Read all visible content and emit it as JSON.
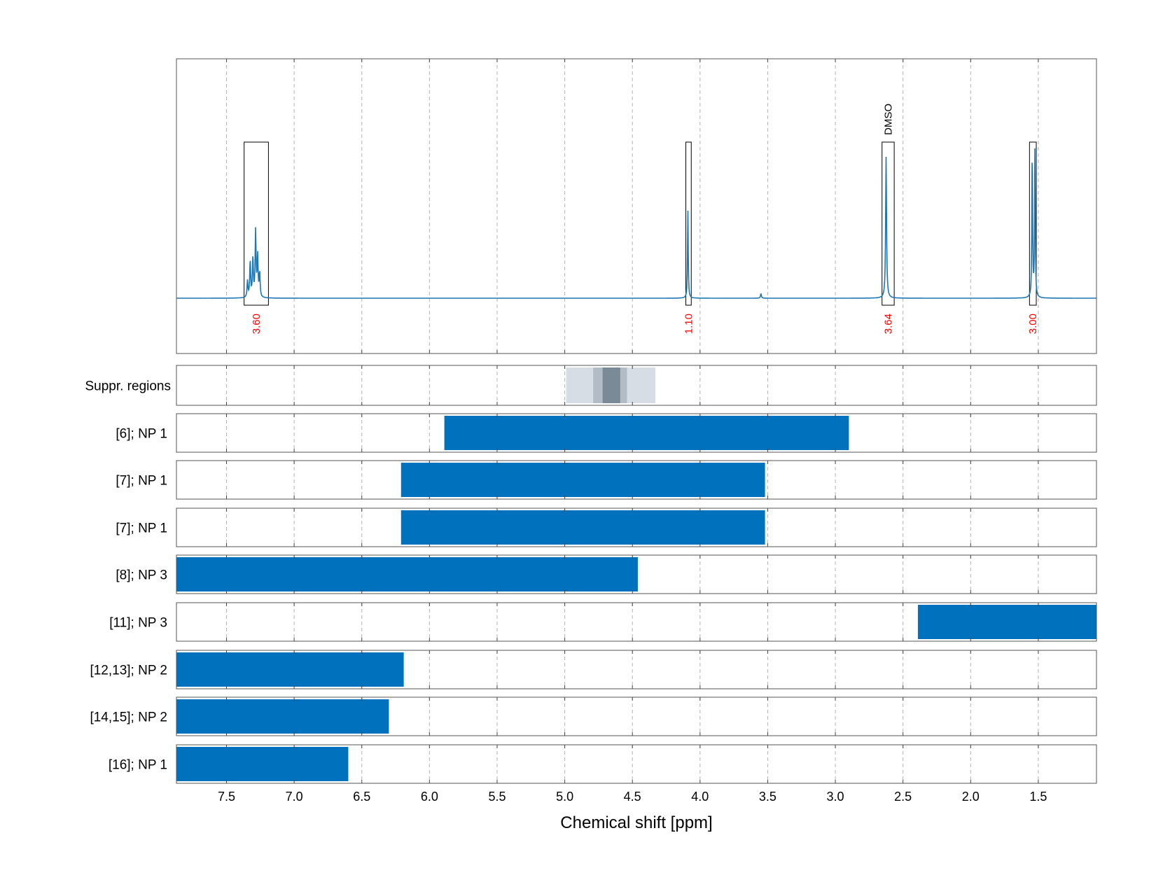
{
  "chart_data": {
    "type": "bar",
    "xlabel": "Chemical shift [ppm]",
    "x_axis": {
      "range": [
        7.87,
        1.07
      ],
      "reversed": true,
      "ticks": [
        7.5,
        7.0,
        6.5,
        6.0,
        5.5,
        5.0,
        4.5,
        4.0,
        3.5,
        3.0,
        2.5,
        2.0,
        1.5
      ],
      "tick_labels": [
        "7.5",
        "7.0",
        "6.5",
        "6.0",
        "5.5",
        "5.0",
        "4.5",
        "4.0",
        "3.5",
        "3.0",
        "2.5",
        "2.0",
        "1.5"
      ]
    },
    "grid": true,
    "colors": {
      "spectrum": "#1f77b4",
      "bar": "#0072bd",
      "integral_label": "#ff0000",
      "grid": "#b3b3b3",
      "suppression_light": "#d6dde5",
      "suppression_mid": "#b1bcc6",
      "suppression_dark": "#7a8a96"
    },
    "spectrum": {
      "baseline": 0,
      "peaks": [
        {
          "center": 7.345,
          "height": 0.11,
          "width": 0.004
        },
        {
          "center": 7.325,
          "height": 0.24,
          "width": 0.004
        },
        {
          "center": 7.305,
          "height": 0.26,
          "width": 0.004
        },
        {
          "center": 7.285,
          "height": 0.44,
          "width": 0.004
        },
        {
          "center": 7.27,
          "height": 0.27,
          "width": 0.004
        },
        {
          "center": 7.255,
          "height": 0.16,
          "width": 0.004
        },
        {
          "center": 4.09,
          "height": 0.59,
          "width": 0.003
        },
        {
          "center": 3.55,
          "height": 0.03,
          "width": 0.004
        },
        {
          "center": 2.625,
          "height": 0.94,
          "width": 0.004
        },
        {
          "center": 1.545,
          "height": 1.0,
          "width": 0.003
        },
        {
          "center": 1.525,
          "height": 0.99,
          "width": 0.003
        }
      ]
    },
    "integrals": [
      {
        "from": 7.37,
        "to": 7.19,
        "value": "3.60"
      },
      {
        "from": 4.105,
        "to": 4.065,
        "value": "1.10"
      },
      {
        "from": 2.655,
        "to": 2.565,
        "value": "3.64",
        "annotation": "DMSO"
      },
      {
        "from": 1.565,
        "to": 1.515,
        "value": "3.00"
      }
    ],
    "suppression": {
      "label": "Suppr. regions",
      "layers": [
        {
          "from": 4.99,
          "to": 4.33,
          "level": "light"
        },
        {
          "from": 4.79,
          "to": 4.54,
          "level": "mid"
        },
        {
          "from": 4.72,
          "to": 4.59,
          "level": "dark"
        }
      ]
    },
    "series": [
      {
        "label": "[6]; NP 1",
        "from": 5.89,
        "to": 2.9
      },
      {
        "label": "[7]; NP 1",
        "from": 6.21,
        "to": 3.52
      },
      {
        "label": "[7]; NP 1",
        "from": 6.21,
        "to": 3.52
      },
      {
        "label": "[8]; NP 3",
        "from": 7.87,
        "to": 4.46
      },
      {
        "label": "[11]; NP 3",
        "from": 2.39,
        "to": 1.07
      },
      {
        "label": "[12,13]; NP 2",
        "from": 7.87,
        "to": 6.19
      },
      {
        "label": "[14,15]; NP 2",
        "from": 7.87,
        "to": 6.3
      },
      {
        "label": "[16]; NP 1",
        "from": 7.87,
        "to": 6.6
      }
    ]
  }
}
